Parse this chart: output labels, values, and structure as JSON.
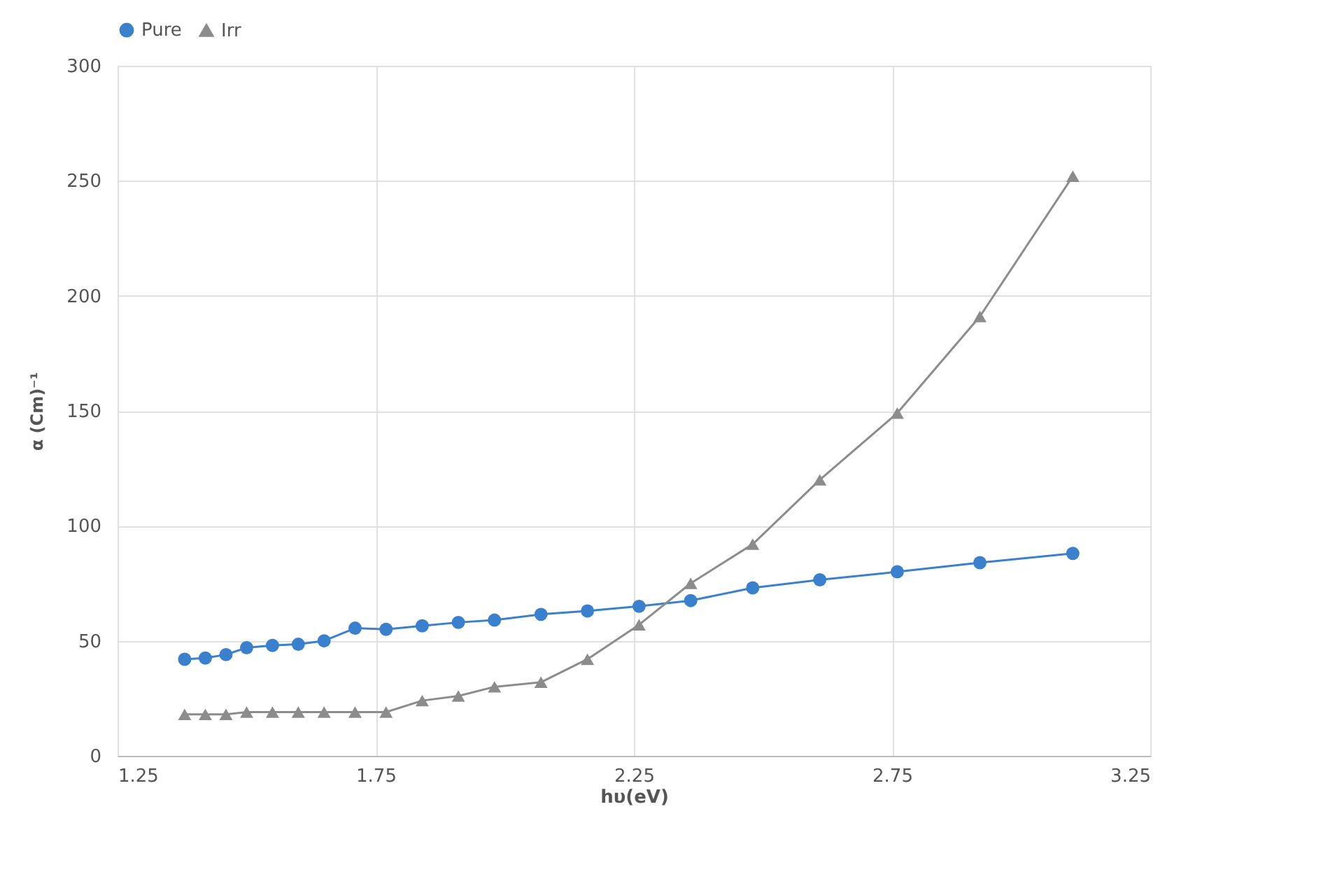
{
  "chart_data": {
    "type": "line",
    "xlabel": "hυ(eV)",
    "ylabel": "α (Cm)⁻¹",
    "x": [
      1.38,
      1.42,
      1.46,
      1.5,
      1.55,
      1.6,
      1.65,
      1.71,
      1.77,
      1.84,
      1.91,
      1.98,
      2.07,
      2.16,
      2.26,
      2.36,
      2.48,
      2.61,
      2.76,
      2.92,
      3.1
    ],
    "series": [
      {
        "name": "Pure",
        "color": "#3a80cc",
        "marker": "circle",
        "values": [
          42,
          42.5,
          44,
          47,
          48,
          48.5,
          50,
          55.5,
          55,
          56.5,
          58,
          59,
          61.5,
          63,
          65,
          67.5,
          73,
          76.5,
          80,
          84,
          88
        ]
      },
      {
        "name": "Irr",
        "color": "#8c8c8c",
        "marker": "triangle",
        "values": [
          18,
          18,
          18,
          19,
          19,
          19,
          19,
          19,
          19,
          24,
          26,
          30,
          32,
          42,
          57,
          75,
          92,
          120,
          149,
          191,
          252
        ]
      }
    ],
    "xlim": [
      1.25,
      3.25
    ],
    "xticks": [
      1.25,
      1.75,
      2.25,
      2.75,
      3.25
    ],
    "ylim": [
      0,
      300
    ],
    "yticks": [
      0,
      50,
      100,
      150,
      200,
      250,
      300
    ],
    "grid": true,
    "legend": "top"
  }
}
